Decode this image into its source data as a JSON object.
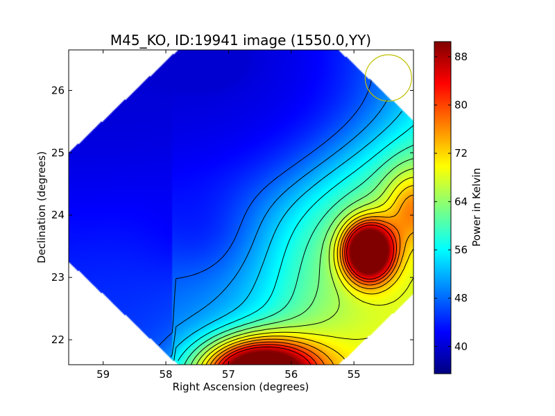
{
  "chart_data": {
    "type": "heatmap",
    "title": "M45_KO, ID:19941 image (1550.0,YY)",
    "xlabel": "Right Ascension (degrees)",
    "ylabel": "Declination (degrees)",
    "colorbar_label": "Power in Kelvin",
    "xlim": [
      59.55,
      54.05
    ],
    "ylim": [
      21.6,
      26.65
    ],
    "x_direction": "reversed",
    "x_ticks": [
      59,
      58,
      57,
      56,
      55
    ],
    "y_ticks": [
      22,
      23,
      24,
      25,
      26
    ],
    "colorbar_range": [
      35.5,
      90.5
    ],
    "colorbar_ticks": [
      40,
      48,
      56,
      64,
      72,
      80,
      88
    ],
    "colormap": "jet",
    "contours": "black",
    "grid": false,
    "peaks": [
      {
        "ra": 54.75,
        "dec": 23.4,
        "power": 90
      },
      {
        "ra": 56.4,
        "dec": 21.7,
        "power": 88
      }
    ],
    "minima": [
      {
        "ra": 56.3,
        "dec": 26.5,
        "power": 36
      }
    ],
    "beam_marker": {
      "ra": 54.45,
      "dec": 26.2,
      "radius_deg": 0.37,
      "color": "#bfbf00"
    }
  }
}
